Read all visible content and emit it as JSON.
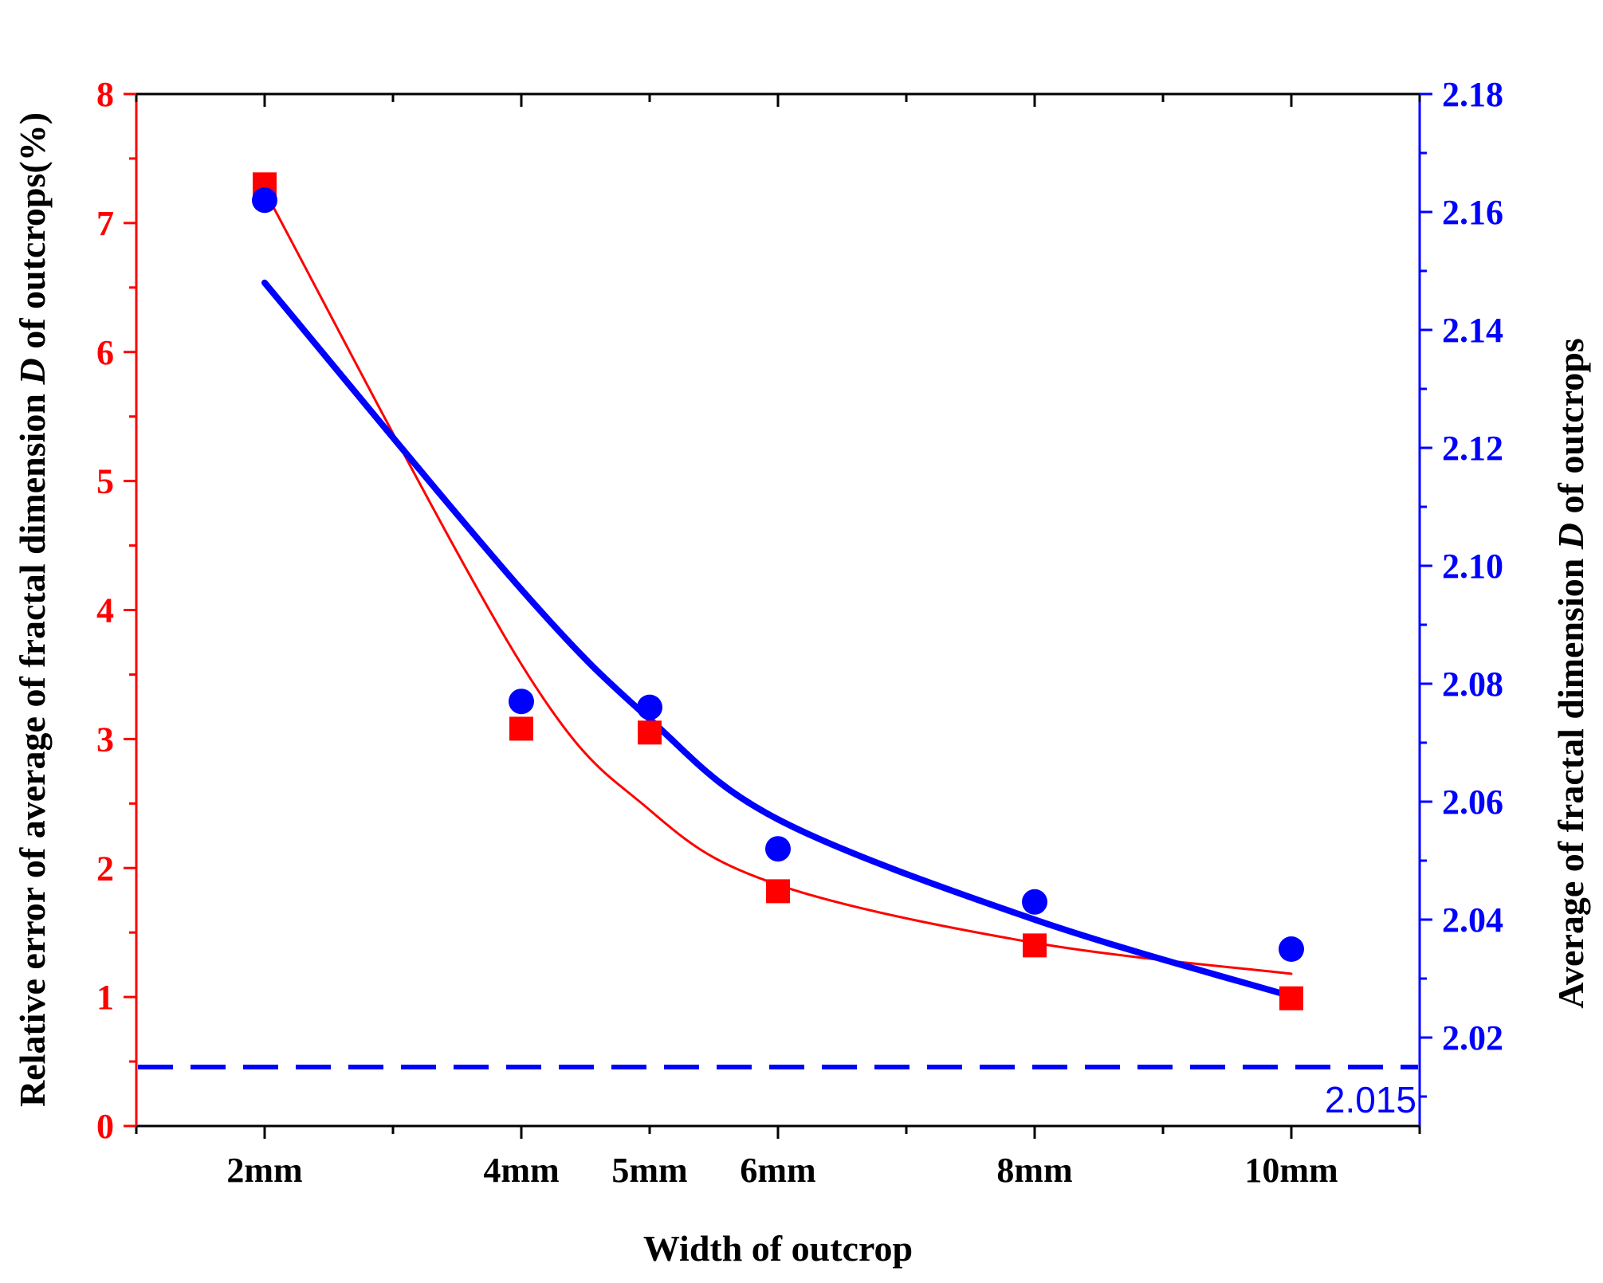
{
  "chart_data": {
    "type": "scatter",
    "title": "",
    "categories": [
      "2mm",
      "4mm",
      "5mm",
      "6mm",
      "8mm",
      "10mm"
    ],
    "x": [
      2,
      4,
      5,
      6,
      8,
      10
    ],
    "xlabel": "Width of outcrop",
    "ylabel_left": {
      "prefix": "Relative error of average of fractal dimension ",
      "symbol": "D",
      "suffix": " of outcrops(%)"
    },
    "ylabel_right": {
      "prefix": "Average of fractal dimension ",
      "symbol": "D",
      "suffix": " of outcrops"
    },
    "xlim": [
      1,
      11
    ],
    "ylim_left": [
      0,
      8
    ],
    "ylim_right": [
      2.005,
      2.18
    ],
    "left_ticks": [
      "0",
      "1",
      "2",
      "3",
      "4",
      "5",
      "6",
      "7",
      "8"
    ],
    "right_ticks": [
      "2.02",
      "2.04",
      "2.06",
      "2.08",
      "2.10",
      "2.12",
      "2.14",
      "2.16",
      "2.18"
    ],
    "series": [
      {
        "name": "Relative error",
        "axis": "left",
        "marker": "square",
        "color": "#ff0000",
        "values": [
          7.3,
          3.08,
          3.05,
          1.82,
          1.4,
          0.99
        ],
        "fit": [
          7.25,
          3.58,
          2.45,
          1.87,
          1.42,
          1.18
        ]
      },
      {
        "name": "Average D",
        "axis": "right",
        "marker": "circle",
        "color": "#0000ff",
        "values": [
          2.162,
          2.077,
          2.076,
          2.052,
          2.043,
          2.035
        ],
        "fit": [
          2.148,
          2.096,
          2.074,
          2.057,
          2.04,
          2.027
        ]
      }
    ],
    "reference_line": {
      "value": 2.015,
      "label": "2.015",
      "axis": "right",
      "style": "dashed",
      "color": "#0000ff"
    },
    "colors": {
      "left_axis": "#ff0000",
      "right_axis": "#0000ff",
      "text": "#000000"
    }
  }
}
